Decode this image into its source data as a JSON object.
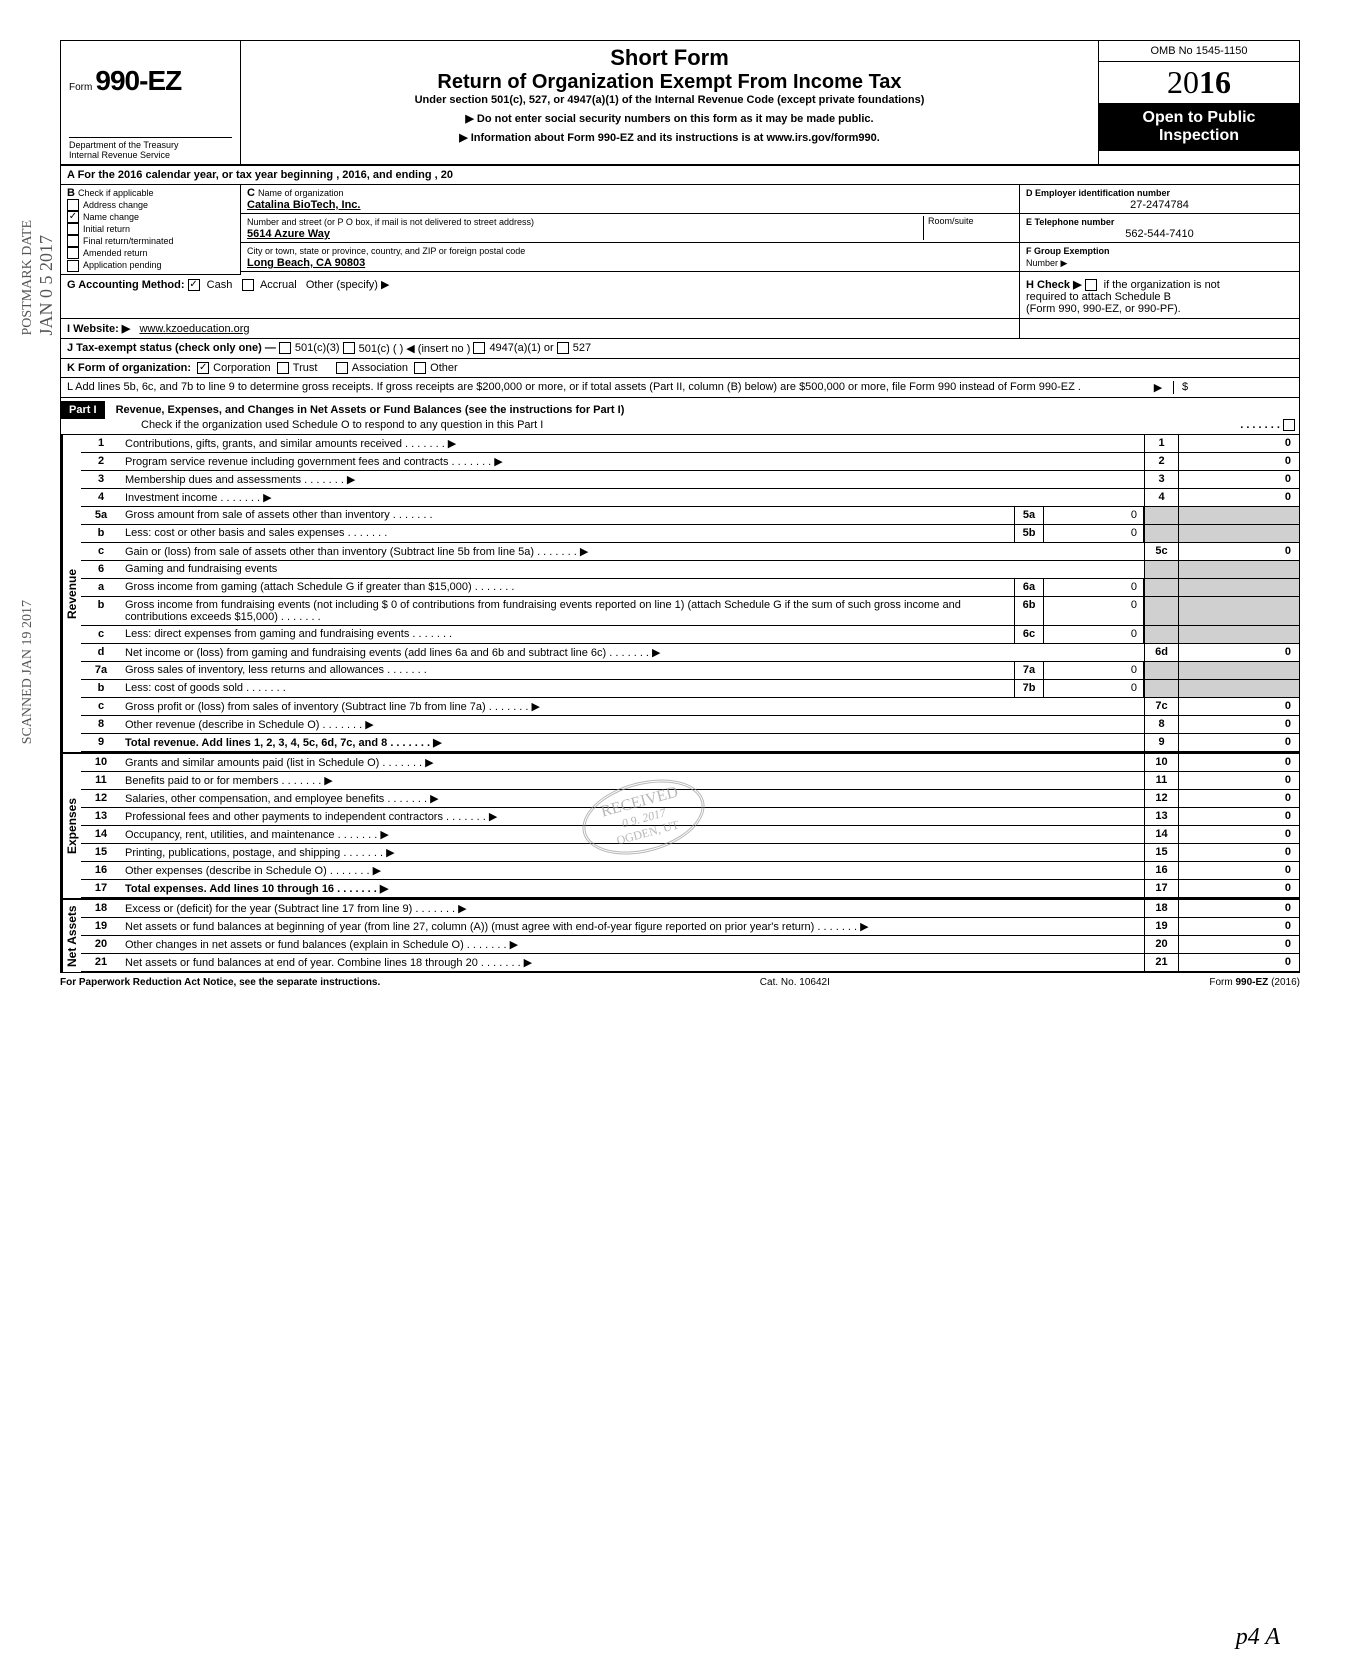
{
  "form": {
    "prefix": "Form",
    "number": "990-EZ",
    "short_form": "Short Form",
    "main_title": "Return of Organization Exempt From Income Tax",
    "subtitle": "Under section 501(c), 527, or 4947(a)(1) of the Internal Revenue Code (except private foundations)",
    "notice1": "Do not enter social security numbers on this form as it may be made public.",
    "notice2": "Information about Form 990-EZ and its instructions is at www.irs.gov/form990.",
    "omb": "OMB No 1545-1150",
    "year_prefix": "20",
    "year_suffix": "16",
    "open_public_1": "Open to Public",
    "open_public_2": "Inspection",
    "dept": "Department of the Treasury",
    "irs": "Internal Revenue Service"
  },
  "section_a": "A For the 2016 calendar year, or tax year beginning                                                                          , 2016, and ending                                                      , 20",
  "section_b": {
    "label": "B",
    "check_label": "Check if applicable",
    "items": [
      {
        "label": "Address change",
        "checked": false
      },
      {
        "label": "Name change",
        "checked": true
      },
      {
        "label": "Initial return",
        "checked": false
      },
      {
        "label": "Final return/terminated",
        "checked": false
      },
      {
        "label": "Amended return",
        "checked": false
      },
      {
        "label": "Application pending",
        "checked": false
      }
    ]
  },
  "section_c": {
    "label": "C",
    "name_label": "Name of organization",
    "name": "Catalina BioTech, Inc.",
    "street_label": "Number and street (or P O  box, if mail is not delivered to street address)",
    "room_label": "Room/suite",
    "street": "5614 Azure Way",
    "city_label": "City or town, state or province, country, and ZIP or foreign postal code",
    "city": "Long Beach, CA  90803"
  },
  "section_d": {
    "label": "D Employer identification number",
    "value": "27-2474784"
  },
  "section_e": {
    "label": "E Telephone number",
    "value": "562-544-7410"
  },
  "section_f": {
    "label": "F Group Exemption",
    "number_label": "Number ▶"
  },
  "section_g": {
    "label": "G Accounting Method:",
    "cash": "Cash",
    "cash_checked": true,
    "accrual": "Accrual",
    "accrual_checked": false,
    "other": "Other (specify) ▶"
  },
  "section_h": {
    "text1": "H Check ▶",
    "text2": "if the organization is not",
    "text3": "required to attach Schedule B",
    "text4": "(Form 990, 990-EZ, or 990-PF)."
  },
  "section_i": {
    "label": "I  Website: ▶",
    "value": "www.kzoeducation.org"
  },
  "section_j": {
    "label": "J Tax-exempt status (check only one) —",
    "opt1": "501(c)(3)",
    "opt2": "501(c) (          ) ◀ (insert no )",
    "opt3": "4947(a)(1) or",
    "opt4": "527"
  },
  "section_k": {
    "label": "K Form of organization:",
    "corp": "Corporation",
    "corp_checked": true,
    "trust": "Trust",
    "assoc": "Association",
    "other": "Other"
  },
  "section_l": {
    "text": "L Add lines 5b, 6c, and 7b to line 9 to determine gross receipts. If gross receipts are $200,000 or more, or if total assets (Part II, column (B) below) are $500,000 or more, file Form 990 instead of Form 990-EZ .",
    "arrow": "▶",
    "dollar": "$"
  },
  "part1": {
    "label": "Part I",
    "title": "Revenue, Expenses, and Changes in Net Assets or Fund Balances (see the instructions for Part I)",
    "check_text": "Check if the organization used Schedule O to respond to any question in this Part I"
  },
  "lines": {
    "l1": {
      "n": "1",
      "d": "Contributions, gifts, grants, and similar amounts received",
      "rn": "1",
      "rv": "0"
    },
    "l2": {
      "n": "2",
      "d": "Program service revenue including government fees and contracts",
      "rn": "2",
      "rv": "0"
    },
    "l3": {
      "n": "3",
      "d": "Membership dues and assessments",
      "rn": "3",
      "rv": "0"
    },
    "l4": {
      "n": "4",
      "d": "Investment income",
      "rn": "4",
      "rv": "0"
    },
    "l5a": {
      "n": "5a",
      "d": "Gross amount from sale of assets other than inventory",
      "mn": "5a",
      "mv": "0"
    },
    "l5b": {
      "n": "b",
      "d": "Less: cost or other basis and sales expenses",
      "mn": "5b",
      "mv": "0"
    },
    "l5c": {
      "n": "c",
      "d": "Gain or (loss) from sale of assets other than inventory (Subtract line 5b from line 5a)",
      "rn": "5c",
      "rv": "0"
    },
    "l6": {
      "n": "6",
      "d": "Gaming and fundraising events"
    },
    "l6a": {
      "n": "a",
      "d": "Gross income from gaming (attach Schedule G if greater than $15,000)",
      "mn": "6a",
      "mv": "0"
    },
    "l6b": {
      "n": "b",
      "d": "Gross income from fundraising events (not including  $                    0 of contributions from fundraising events reported on line 1) (attach Schedule G if the sum of such gross income and contributions exceeds $15,000)",
      "mn": "6b",
      "mv": "0"
    },
    "l6c": {
      "n": "c",
      "d": "Less: direct expenses from gaming and fundraising events",
      "mn": "6c",
      "mv": "0"
    },
    "l6d": {
      "n": "d",
      "d": "Net income or (loss) from gaming and fundraising events (add lines 6a and 6b and subtract line 6c)",
      "rn": "6d",
      "rv": "0"
    },
    "l7a": {
      "n": "7a",
      "d": "Gross sales of inventory, less returns and allowances",
      "mn": "7a",
      "mv": "0"
    },
    "l7b": {
      "n": "b",
      "d": "Less: cost of goods sold",
      "mn": "7b",
      "mv": "0"
    },
    "l7c": {
      "n": "c",
      "d": "Gross profit or (loss) from sales of inventory (Subtract line 7b from line 7a)",
      "rn": "7c",
      "rv": "0"
    },
    "l8": {
      "n": "8",
      "d": "Other revenue (describe in Schedule O)",
      "rn": "8",
      "rv": "0"
    },
    "l9": {
      "n": "9",
      "d": "Total revenue. Add lines 1, 2, 3, 4, 5c, 6d, 7c, and 8",
      "rn": "9",
      "rv": "0",
      "bold": true
    },
    "l10": {
      "n": "10",
      "d": "Grants and similar amounts paid (list in Schedule O)",
      "rn": "10",
      "rv": "0"
    },
    "l11": {
      "n": "11",
      "d": "Benefits paid to or for members",
      "rn": "11",
      "rv": "0"
    },
    "l12": {
      "n": "12",
      "d": "Salaries, other compensation, and employee benefits",
      "rn": "12",
      "rv": "0"
    },
    "l13": {
      "n": "13",
      "d": "Professional fees and other payments to independent contractors",
      "rn": "13",
      "rv": "0"
    },
    "l14": {
      "n": "14",
      "d": "Occupancy, rent, utilities, and maintenance",
      "rn": "14",
      "rv": "0"
    },
    "l15": {
      "n": "15",
      "d": "Printing, publications, postage, and shipping",
      "rn": "15",
      "rv": "0"
    },
    "l16": {
      "n": "16",
      "d": "Other expenses (describe in Schedule O)",
      "rn": "16",
      "rv": "0"
    },
    "l17": {
      "n": "17",
      "d": "Total expenses. Add lines 10 through 16",
      "rn": "17",
      "rv": "0",
      "bold": true
    },
    "l18": {
      "n": "18",
      "d": "Excess or (deficit) for the year (Subtract line 17 from line 9)",
      "rn": "18",
      "rv": "0"
    },
    "l19": {
      "n": "19",
      "d": "Net assets or fund balances at beginning of year (from line 27, column (A)) (must agree with end-of-year figure reported on prior year's return)",
      "rn": "19",
      "rv": "0"
    },
    "l20": {
      "n": "20",
      "d": "Other changes in net assets or fund balances (explain in Schedule O)",
      "rn": "20",
      "rv": "0"
    },
    "l21": {
      "n": "21",
      "d": "Net assets or fund balances at end of year. Combine lines 18 through 20",
      "rn": "21",
      "rv": "0"
    }
  },
  "vert_labels": {
    "revenue": "Revenue",
    "expenses": "Expenses",
    "netassets": "Net Assets"
  },
  "footer": {
    "left": "For Paperwork Reduction Act Notice, see the separate instructions.",
    "center": "Cat. No. 10642I",
    "right_prefix": "Form",
    "right_form": "990-EZ",
    "right_year": "(2016)"
  },
  "stamps": {
    "received": "RECEIVED",
    "received_date": "0 9. 2017",
    "received_loc": "OGDEN, UT",
    "postmark": "POSTMARK DATE",
    "postmark_date": "JAN 0 5 2017",
    "scanned": "SCANNED JAN 19 2017",
    "handwritten": "p4  A"
  },
  "colors": {
    "black": "#000000",
    "white": "#ffffff",
    "shaded": "#d0d0d0",
    "stamp": "#888888"
  }
}
